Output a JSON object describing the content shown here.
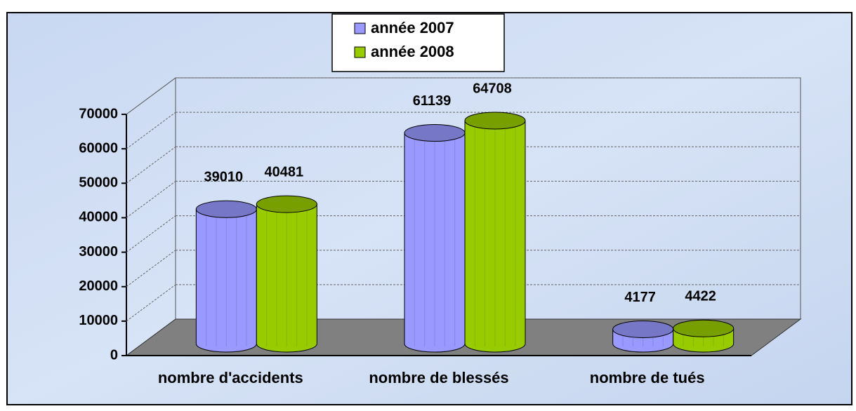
{
  "chart_data": {
    "type": "bar",
    "categories": [
      "nombre d'accidents",
      "nombre de blessés",
      "nombre de tués"
    ],
    "series": [
      {
        "name": "année 2007",
        "color": "#9999ff",
        "values": [
          39010,
          61139,
          4177
        ]
      },
      {
        "name": "année 2008",
        "color": "#99cc00",
        "values": [
          40481,
          64708,
          4422
        ]
      }
    ],
    "ylim": [
      0,
      70000
    ],
    "yticks": [
      0,
      10000,
      20000,
      30000,
      40000,
      50000,
      60000,
      70000
    ],
    "grid": true,
    "legend": "top"
  }
}
